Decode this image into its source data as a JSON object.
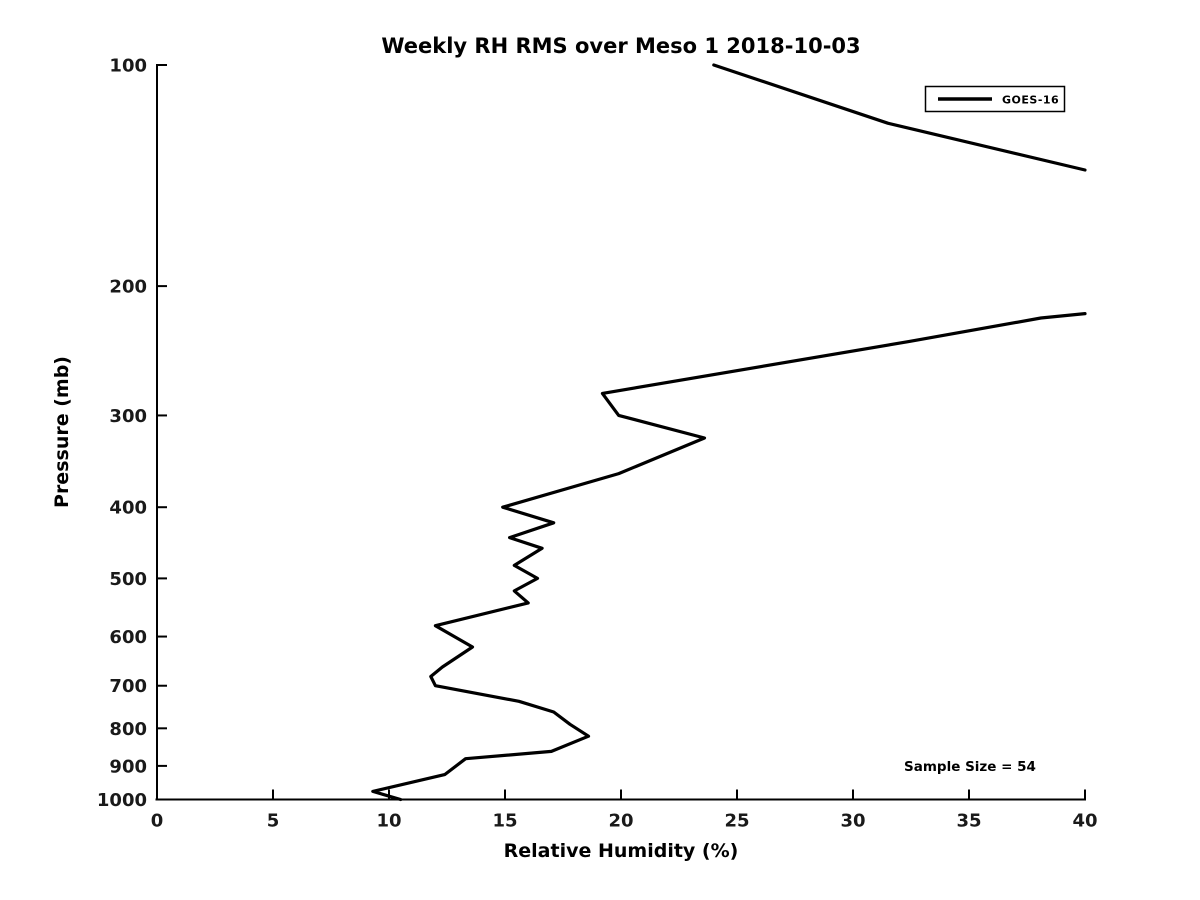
{
  "chart": {
    "title": "Weekly RH RMS over Meso 1 2018-10-03",
    "xlabel": "Relative Humidity (%)",
    "ylabel": "Pressure (mb)",
    "annotation": "Sample Size = 54",
    "legend": {
      "label": "GOES-16"
    },
    "colors": {
      "line": "#000000",
      "text": "#000000",
      "background": "#ffffff"
    }
  },
  "chart_data": {
    "type": "line",
    "title": "Weekly RH RMS over Meso 1 2018-10-03",
    "xlabel": "Relative Humidity (%)",
    "ylabel": "Pressure (mb)",
    "xlim": [
      0,
      40
    ],
    "ylim": [
      100,
      1000
    ],
    "yscale": "log",
    "y_axis_direction": "inverted (100 mb at top, 1000 mb at bottom)",
    "x_ticks": [
      0,
      5,
      10,
      15,
      20,
      25,
      30,
      35,
      40
    ],
    "y_ticks": [
      100,
      200,
      300,
      400,
      500,
      600,
      700,
      800,
      900,
      1000
    ],
    "grid": false,
    "legend_position": "upper right",
    "annotation": "Sample Size = 54",
    "series": [
      {
        "name": "GOES-16",
        "color": "#000000",
        "units": {
          "x": "RH %",
          "y": "pressure mb"
        },
        "clipped_at_x_max": true,
        "segments_rh_pressure": [
          [
            [
              24.0,
              100
            ],
            [
              31.5,
              120
            ],
            [
              40.0,
              139
            ]
          ],
          [
            [
              40.0,
              218
            ],
            [
              38.1,
              221
            ],
            [
              32.4,
              238
            ],
            [
              19.2,
              280
            ],
            [
              19.9,
              300
            ],
            [
              23.6,
              322
            ],
            [
              19.9,
              360
            ],
            [
              14.9,
              400
            ],
            [
              17.1,
              420
            ],
            [
              15.2,
              440
            ],
            [
              16.6,
              455
            ],
            [
              15.4,
              480
            ],
            [
              16.4,
              500
            ],
            [
              15.4,
              520
            ],
            [
              16.0,
              540
            ],
            [
              12.0,
              580
            ],
            [
              13.6,
              620
            ],
            [
              12.3,
              660
            ],
            [
              11.8,
              680
            ],
            [
              12.0,
              700
            ],
            [
              15.6,
              735
            ],
            [
              17.1,
              760
            ],
            [
              17.8,
              790
            ],
            [
              18.6,
              820
            ],
            [
              17.0,
              860
            ],
            [
              13.3,
              880
            ],
            [
              12.4,
              925
            ],
            [
              9.3,
              975
            ],
            [
              10.5,
              1000
            ]
          ]
        ]
      }
    ]
  }
}
